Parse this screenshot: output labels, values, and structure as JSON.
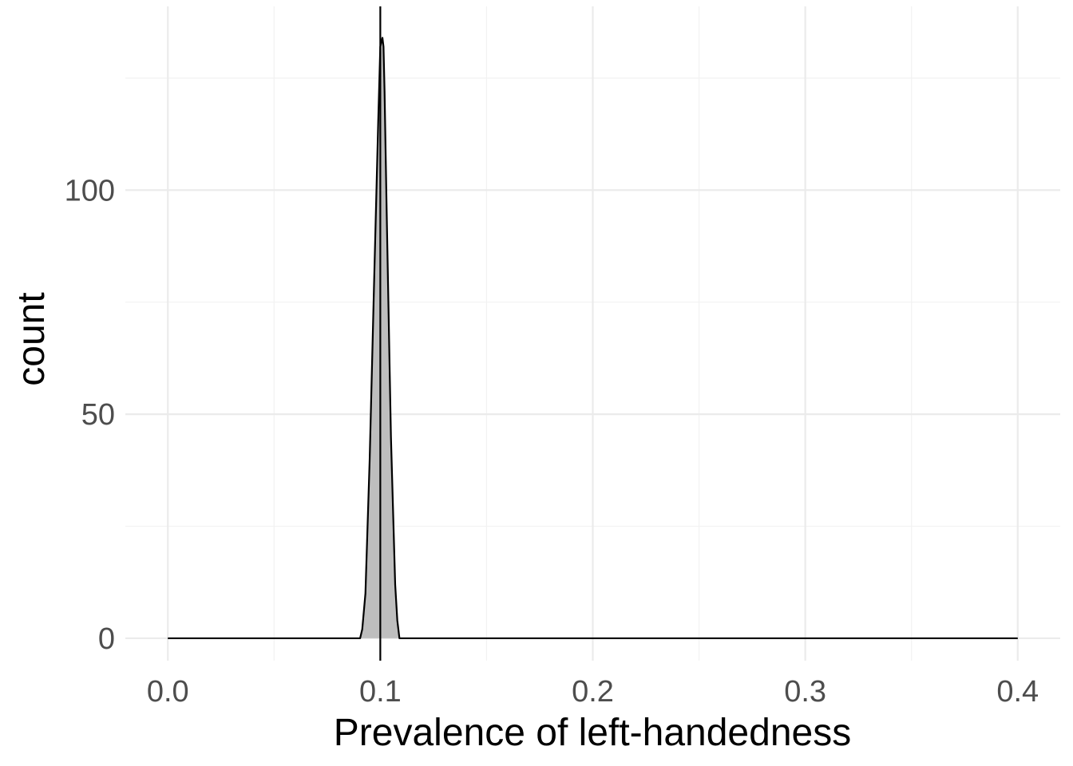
{
  "chart_data": {
    "type": "area",
    "title": "",
    "xlabel": "Prevalence of left-handedness",
    "ylabel": "count",
    "xlim": [
      -0.02,
      0.42
    ],
    "ylim": [
      -5,
      141
    ],
    "x_ticks": [
      0.0,
      0.1,
      0.2,
      0.3,
      0.4
    ],
    "x_tick_labels": [
      "0.0",
      "0.1",
      "0.2",
      "0.3",
      "0.4"
    ],
    "y_ticks": [
      0,
      50,
      100
    ],
    "y_tick_labels": [
      "0",
      "50",
      "100"
    ],
    "grid": true,
    "legend": "none",
    "fill_color": "#bebebe",
    "line_color": "#000000",
    "series": [
      {
        "x": [
          0.0,
          0.05,
          0.0905,
          0.0915,
          0.093,
          0.095,
          0.097,
          0.099,
          0.1,
          0.1005,
          0.101,
          0.1015,
          0.102,
          0.103,
          0.105,
          0.107,
          0.108,
          0.109,
          0.12,
          0.2,
          0.3,
          0.4
        ],
        "y": [
          0,
          0,
          0,
          2,
          10,
          40,
          78,
          115,
          132,
          133,
          134,
          132,
          122,
          95,
          45,
          12,
          4,
          0,
          0,
          0,
          0,
          0
        ]
      }
    ],
    "vline": 0.1
  }
}
